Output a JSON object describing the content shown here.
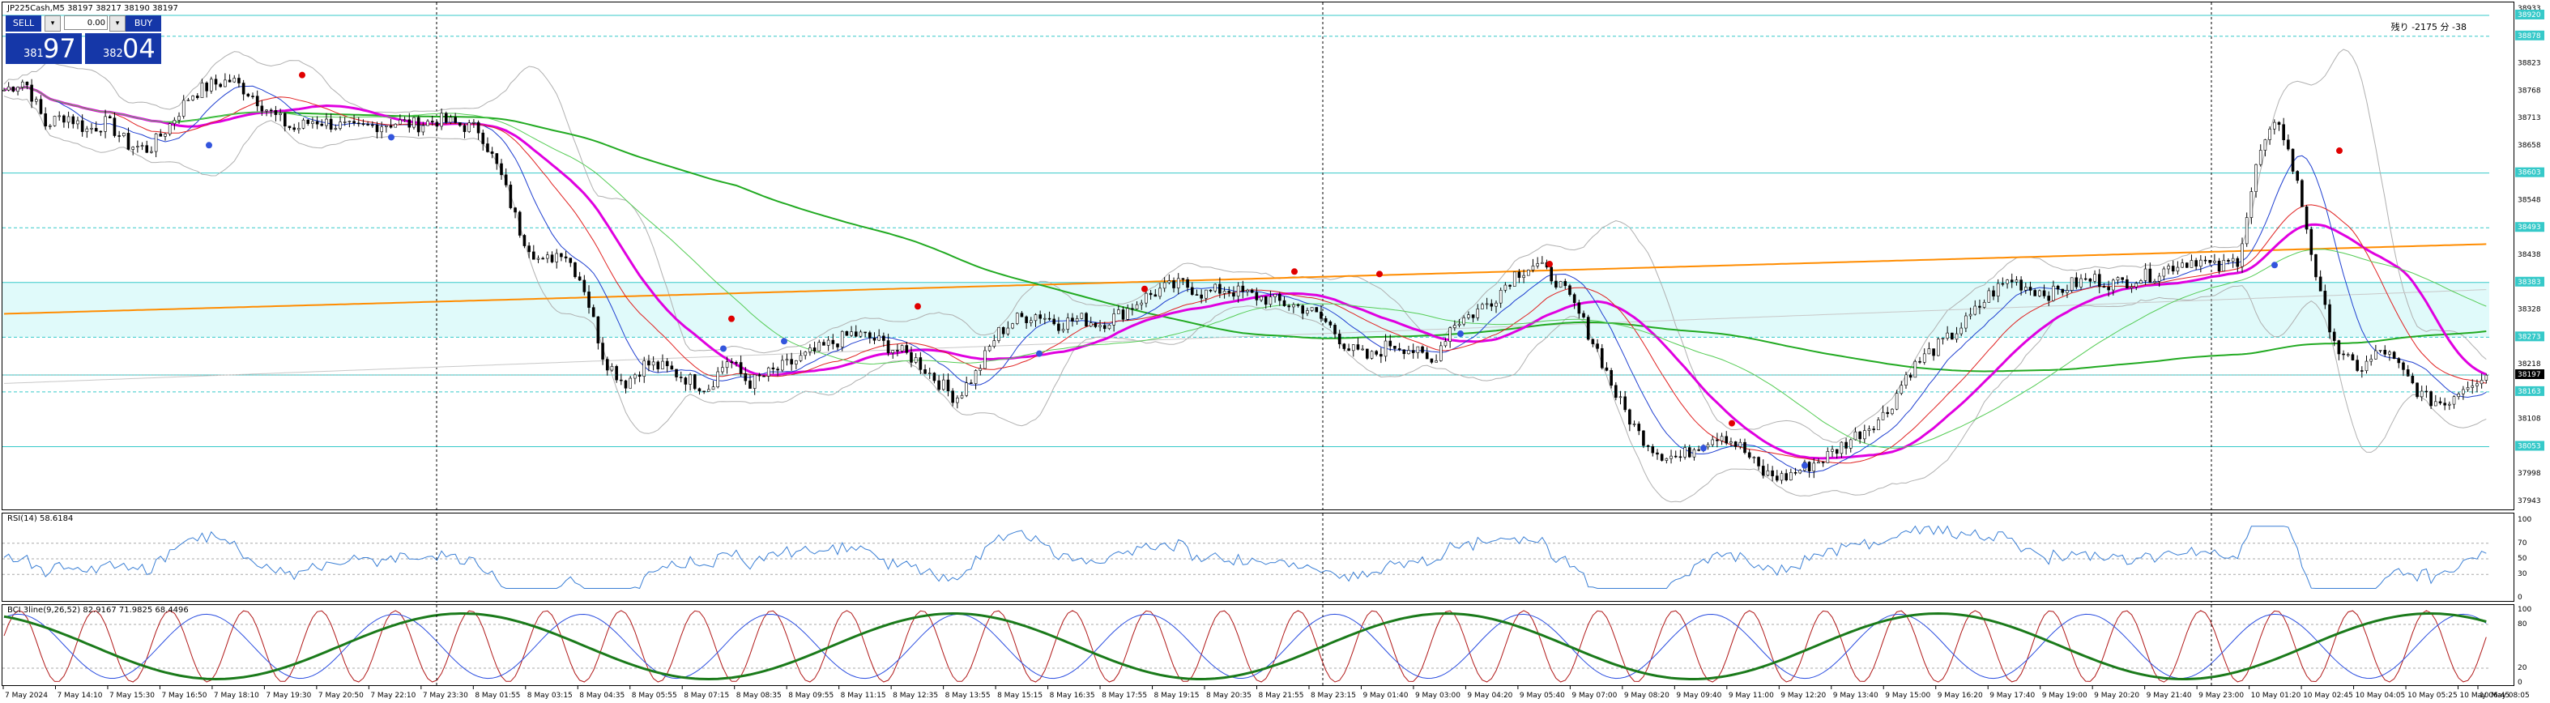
{
  "chart_title": "JP225Cash,M5  38197 38217 38190 38197",
  "trade_panel": {
    "sell_label": "SELL",
    "buy_label": "BUY",
    "lot_value": "0.00",
    "sell_small": "381",
    "sell_big": "97",
    "buy_small": "382",
    "buy_big": "04"
  },
  "countdown": "残り -2175 分 -38",
  "rsi_title": "RSI(14) 58.6184",
  "stoch_title": "BCI 3line(9,26,52) 82.9167 71.9825 68.4496",
  "colors": {
    "candle": "#000000",
    "bb": "#b0b0b0",
    "ma_green": "#22aa22",
    "ma_orange": "#ff8c00",
    "ma_magenta": "#e000e0",
    "ma_blue": "#1f3fd0",
    "ma_red": "#e02020",
    "zone": "#e0fafa",
    "zone_line": "#36c9c9",
    "rsi": "#3a7fd5",
    "stoch_red": "#b01818",
    "stoch_blue": "#2a4de0",
    "stoch_green": "#1a7a1a"
  },
  "chart_data": {
    "type": "candlestick",
    "symbol": "JP225Cash",
    "timeframe": "M5",
    "price_axis": {
      "min": 37943,
      "max": 38933,
      "ticks": [
        "38933",
        "38878",
        "38823",
        "38768",
        "38713",
        "38658",
        "38603",
        "38548",
        "38493",
        "38438",
        "38383",
        "38328",
        "38273",
        "38218",
        "38163",
        "38108",
        "38053",
        "37998",
        "37943"
      ],
      "highlight_labels": [
        "38920",
        "38878",
        "38603",
        "38493",
        "38383",
        "38273",
        "38197",
        "38163",
        "38053"
      ]
    },
    "time_labels": [
      "7 May 2024",
      "7 May 14:10",
      "7 May 15:30",
      "7 May 16:50",
      "7 May 18:10",
      "7 May 19:30",
      "7 May 20:50",
      "7 May 22:10",
      "7 May 23:30",
      "8 May 01:55",
      "8 May 03:15",
      "8 May 04:35",
      "8 May 05:55",
      "8 May 07:15",
      "8 May 08:35",
      "8 May 09:55",
      "8 May 11:15",
      "8 May 12:35",
      "8 May 13:55",
      "8 May 15:15",
      "8 May 16:35",
      "8 May 17:55",
      "8 May 19:15",
      "8 May 20:35",
      "8 May 21:55",
      "8 May 23:15",
      "9 May 01:40",
      "9 May 03:00",
      "9 May 04:20",
      "9 May 05:40",
      "9 May 07:00",
      "9 May 08:20",
      "9 May 09:40",
      "9 May 11:00",
      "9 May 12:20",
      "9 May 13:40",
      "9 May 15:00",
      "9 May 16:20",
      "9 May 17:40",
      "9 May 19:00",
      "9 May 20:20",
      "9 May 21:40",
      "9 May 23:00",
      "10 May 01:20",
      "10 May 02:45",
      "10 May 04:05",
      "10 May 05:25",
      "10 May 06:45",
      "10 May 08:05"
    ],
    "close_path": [
      38770,
      38790,
      38700,
      38720,
      38690,
      38705,
      38660,
      38650,
      38700,
      38760,
      38780,
      38790,
      38760,
      38720,
      38690,
      38710,
      38700,
      38690,
      38700,
      38705,
      38700,
      38710,
      38700,
      38690,
      38600,
      38480,
      38420,
      38450,
      38380,
      38230,
      38180,
      38220,
      38210,
      38190,
      38170,
      38230,
      38180,
      38200,
      38220,
      38240,
      38260,
      38280,
      38270,
      38250,
      38230,
      38190,
      38150,
      38200,
      38280,
      38310,
      38320,
      38300,
      38310,
      38300,
      38320,
      38350,
      38370,
      38380,
      38360,
      38370,
      38360,
      38350,
      38340,
      38330,
      38300,
      38250,
      38230,
      38260,
      38250,
      38220,
      38300,
      38320,
      38350,
      38400,
      38420,
      38390,
      38330,
      38250,
      38150,
      38080,
      38040,
      38030,
      38060,
      38080,
      38050,
      38000,
      37990,
      38010,
      38030,
      38060,
      38090,
      38120,
      38200,
      38240,
      38270,
      38310,
      38360,
      38390,
      38370,
      38360,
      38380,
      38390,
      38380,
      38390,
      38400,
      38420,
      38430,
      38410,
      38430,
      38640,
      38710,
      38560,
      38350,
      38230,
      38210,
      38250,
      38200,
      38150,
      38140,
      38180,
      38197
    ],
    "rsi_axis": {
      "min": 0,
      "max": 100,
      "ticks": [
        "100",
        "70",
        "50",
        "30",
        "0"
      ]
    },
    "stoch_axis": {
      "min": 0,
      "max": 100,
      "ticks": [
        "100",
        "80",
        "20",
        "0"
      ]
    }
  }
}
